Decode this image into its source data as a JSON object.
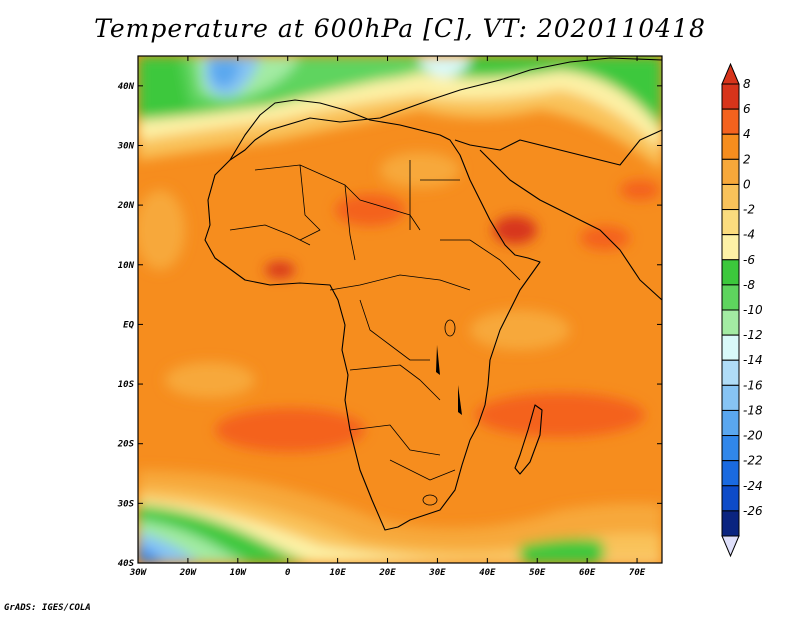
{
  "title": "Temperature at 600hPa [C], VT: 2020110418",
  "footer": "GrADS: IGES/COLA",
  "map": {
    "lon_labels": [
      "30W",
      "20W",
      "10W",
      "0",
      "10E",
      "20E",
      "30E",
      "40E",
      "50E",
      "60E",
      "70E"
    ],
    "lat_labels": [
      "40N",
      "30N",
      "20N",
      "10N",
      "EQ",
      "10S",
      "20S",
      "30S",
      "40S"
    ],
    "lon_range": [
      -30,
      75
    ],
    "lat_range": [
      -40,
      45
    ]
  },
  "colorbar": {
    "labels": [
      "8",
      "6",
      "4",
      "2",
      "0",
      "-2",
      "-4",
      "-6",
      "-8",
      "-10",
      "-12",
      "-14",
      "-16",
      "-18",
      "-20",
      "-22",
      "-24",
      "-26"
    ],
    "colors": [
      "#d7341b",
      "#f4621e",
      "#f68d1e",
      "#f7a83a",
      "#f9c25a",
      "#fbdc7e",
      "#fdf1a6",
      "#3cc83c",
      "#5ed45e",
      "#a3eba3",
      "#d9f9f9",
      "#b0dcf7",
      "#87c4f4",
      "#5aa7ef",
      "#3187ea",
      "#1a6ae0",
      "#0d4bc8",
      "#0a2480"
    ]
  }
}
